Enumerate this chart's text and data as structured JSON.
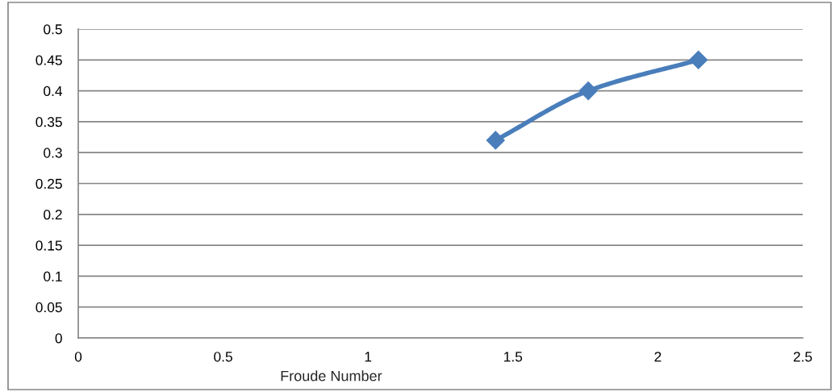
{
  "chart_data": {
    "type": "line",
    "xlabel": "Froude Number",
    "x": [
      1.44,
      1.76,
      2.14
    ],
    "series": [
      {
        "color": "#4a7ebb",
        "values": [
          0.32,
          0.4,
          0.45
        ]
      }
    ],
    "xlim": [
      0,
      2.5
    ],
    "xticks": [
      0,
      0.5,
      1,
      1.5,
      2,
      2.5
    ],
    "ylim": [
      0,
      0.5
    ],
    "yticks": [
      0,
      0.05,
      0.1,
      0.15,
      0.2,
      0.25,
      0.3,
      0.35,
      0.4,
      0.45,
      0.5
    ],
    "grid": "y",
    "marker": "diamond",
    "line_style": "solid"
  }
}
